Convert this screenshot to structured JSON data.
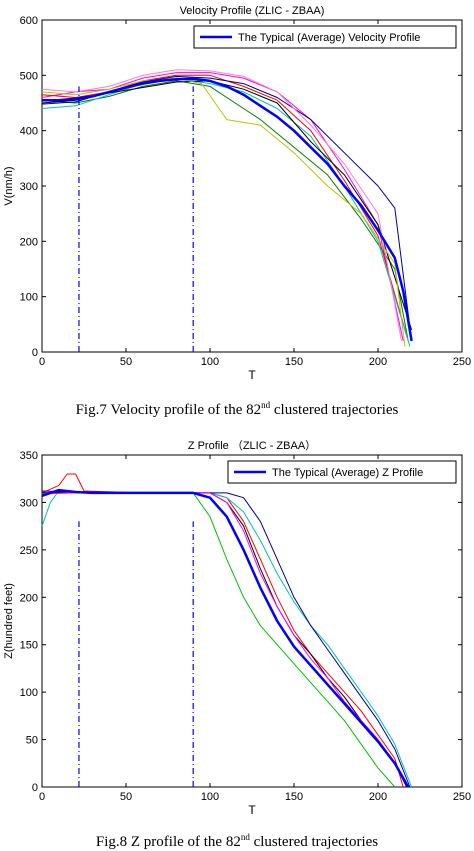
{
  "figures": [
    {
      "caption_prefix": "Fig.7 Velocity profile of the 82",
      "caption_sup": "nd",
      "caption_suffix": " clustered trajectories"
    },
    {
      "caption_prefix": "Fig.8 Z profile of the 82",
      "caption_sup": "nd",
      "caption_suffix": " clustered trajectories"
    }
  ],
  "chart_data": [
    {
      "type": "line",
      "title": "Velocity Profile (ZLIC - ZBAA)",
      "xlabel": "T",
      "ylabel": "V(nm/h)",
      "xlim": [
        0,
        250
      ],
      "ylim": [
        0,
        600
      ],
      "xticks": [
        0,
        50,
        100,
        150,
        200,
        250
      ],
      "yticks": [
        0,
        100,
        200,
        300,
        400,
        500,
        600
      ],
      "legend": {
        "position": "top-right",
        "entries": [
          "The Typical (Average) Velocity Profile"
        ]
      },
      "vertical_markers": [
        22,
        90
      ],
      "series": [
        {
          "name": "The Typical (Average) Velocity Profile",
          "color": "#0000ff",
          "width": 2.5,
          "x": [
            0,
            10,
            20,
            30,
            40,
            50,
            60,
            70,
            80,
            90,
            100,
            110,
            120,
            130,
            140,
            150,
            160,
            170,
            180,
            190,
            200,
            210,
            215,
            220
          ],
          "y": [
            455,
            455,
            458,
            462,
            470,
            478,
            485,
            490,
            493,
            494,
            490,
            480,
            465,
            445,
            425,
            400,
            370,
            340,
            300,
            265,
            220,
            170,
            110,
            20
          ]
        },
        {
          "color": "#ff00ff",
          "x": [
            0,
            20,
            40,
            60,
            80,
            100,
            120,
            140,
            160,
            180,
            200,
            215
          ],
          "y": [
            460,
            470,
            475,
            495,
            505,
            505,
            495,
            470,
            420,
            330,
            230,
            20
          ]
        },
        {
          "color": "#ff0000",
          "x": [
            0,
            20,
            40,
            60,
            80,
            100,
            120,
            140,
            160,
            180,
            200,
            217
          ],
          "y": [
            465,
            460,
            470,
            490,
            500,
            500,
            480,
            455,
            400,
            310,
            210,
            30
          ]
        },
        {
          "color": "#008000",
          "x": [
            0,
            20,
            40,
            60,
            80,
            100,
            110,
            130,
            150,
            170,
            190,
            210,
            218
          ],
          "y": [
            455,
            450,
            462,
            480,
            490,
            480,
            460,
            420,
            370,
            320,
            240,
            150,
            20
          ]
        },
        {
          "color": "#00bfbf",
          "x": [
            0,
            20,
            40,
            60,
            80,
            100,
            120,
            140,
            160,
            180,
            200,
            219
          ],
          "y": [
            440,
            445,
            465,
            485,
            495,
            485,
            470,
            440,
            390,
            300,
            200,
            10
          ]
        },
        {
          "color": "#000000",
          "x": [
            0,
            20,
            40,
            60,
            80,
            100,
            120,
            140,
            160,
            180,
            200,
            220
          ],
          "y": [
            450,
            455,
            468,
            478,
            488,
            490,
            475,
            450,
            380,
            320,
            230,
            40
          ]
        },
        {
          "color": "#bfbf00",
          "x": [
            0,
            20,
            40,
            60,
            80,
            95,
            110,
            130,
            150,
            170,
            190,
            210,
            216
          ],
          "y": [
            470,
            465,
            475,
            490,
            495,
            485,
            420,
            410,
            360,
            300,
            250,
            160,
            10
          ]
        },
        {
          "color": "#00008b",
          "x": [
            0,
            20,
            40,
            60,
            80,
            100,
            120,
            140,
            160,
            180,
            200,
            210,
            220
          ],
          "y": [
            448,
            452,
            470,
            488,
            498,
            495,
            485,
            460,
            420,
            360,
            300,
            260,
            20
          ]
        },
        {
          "color": "#ff80c0",
          "x": [
            0,
            20,
            40,
            60,
            80,
            100,
            120,
            140,
            160,
            180,
            200,
            214
          ],
          "y": [
            475,
            470,
            480,
            500,
            510,
            508,
            498,
            470,
            410,
            340,
            250,
            20
          ]
        }
      ]
    },
    {
      "type": "line",
      "title": "Z Profile （ZLIC - ZBAA）",
      "xlabel": "T",
      "ylabel": "Z(hundred feet)",
      "xlim": [
        0,
        250
      ],
      "ylim": [
        0,
        350
      ],
      "xticks": [
        0,
        50,
        100,
        150,
        200,
        250
      ],
      "yticks": [
        0,
        50,
        100,
        150,
        200,
        250,
        300,
        350
      ],
      "legend": {
        "position": "top-right",
        "entries": [
          "The Typical (Average) Z Profile"
        ]
      },
      "vertical_markers": [
        22,
        90
      ],
      "series": [
        {
          "name": "The Typical (Average) Z Profile",
          "color": "#0000ff",
          "width": 2.5,
          "x": [
            0,
            5,
            10,
            20,
            30,
            60,
            90,
            100,
            110,
            120,
            130,
            140,
            150,
            160,
            170,
            180,
            190,
            200,
            210,
            218
          ],
          "y": [
            307,
            310,
            313,
            311,
            310,
            310,
            310,
            305,
            285,
            250,
            210,
            175,
            148,
            128,
            108,
            88,
            68,
            48,
            25,
            0
          ]
        },
        {
          "color": "#ff0000",
          "x": [
            0,
            10,
            15,
            20,
            25,
            60,
            100,
            110,
            120,
            130,
            140,
            150,
            160,
            170,
            180,
            190,
            200,
            210,
            215
          ],
          "y": [
            310,
            318,
            330,
            330,
            312,
            310,
            310,
            305,
            280,
            240,
            200,
            165,
            140,
            120,
            100,
            80,
            55,
            30,
            0
          ]
        },
        {
          "color": "#00c000",
          "x": [
            0,
            10,
            30,
            60,
            90,
            100,
            110,
            120,
            130,
            140,
            150,
            160,
            170,
            180,
            190,
            200,
            210
          ],
          "y": [
            308,
            312,
            310,
            310,
            310,
            285,
            240,
            200,
            170,
            150,
            130,
            110,
            90,
            70,
            45,
            20,
            0
          ]
        },
        {
          "color": "#00bfbf",
          "x": [
            0,
            5,
            10,
            20,
            30,
            60,
            100,
            110,
            120,
            130,
            140,
            150,
            160,
            170,
            180,
            190,
            200,
            210,
            220
          ],
          "y": [
            275,
            300,
            312,
            311,
            310,
            310,
            310,
            305,
            290,
            260,
            225,
            195,
            170,
            150,
            125,
            100,
            75,
            45,
            0
          ]
        },
        {
          "color": "#000000",
          "x": [
            0,
            20,
            60,
            100,
            110,
            120,
            130,
            140,
            150,
            160,
            170,
            180,
            190,
            200,
            210,
            217
          ],
          "y": [
            310,
            311,
            310,
            310,
            300,
            275,
            230,
            190,
            160,
            140,
            115,
            95,
            70,
            50,
            25,
            0
          ]
        },
        {
          "color": "#00008b",
          "x": [
            0,
            20,
            60,
            110,
            120,
            130,
            140,
            150,
            160,
            170,
            180,
            190,
            200,
            210,
            219
          ],
          "y": [
            312,
            311,
            310,
            310,
            305,
            280,
            240,
            200,
            170,
            145,
            120,
            95,
            70,
            40,
            0
          ]
        },
        {
          "color": "#ff00ff",
          "x": [
            0,
            20,
            60,
            100,
            110,
            120,
            130,
            140,
            150,
            160,
            170,
            180,
            190,
            200,
            210,
            218
          ],
          "y": [
            309,
            310,
            310,
            310,
            300,
            270,
            225,
            190,
            160,
            135,
            115,
            90,
            70,
            50,
            25,
            0
          ]
        }
      ]
    }
  ]
}
